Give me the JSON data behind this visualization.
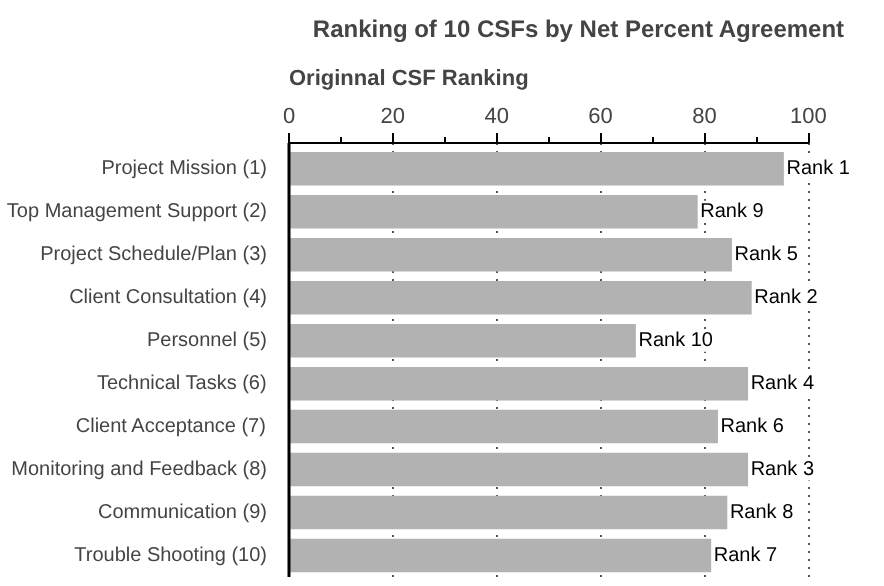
{
  "chart_data": {
    "type": "bar",
    "orientation": "horizontal",
    "title": "Ranking of 10 CSFs by Net Percent Agreement",
    "ylabel": "Originnal CSF Ranking",
    "categories": [
      "Project Mission (1)",
      "Top Management Support (2)",
      "Project Schedule/Plan (3)",
      "Client Consultation (4)",
      "Personnel (5)",
      "Technical Tasks (6)",
      "Client Acceptance (7)",
      "Monitoring and Feedback (8)",
      "Communication (9)",
      "Trouble Shooting (10)"
    ],
    "values": [
      95.3,
      78.7,
      85.3,
      89.1,
      66.8,
      88.4,
      82.6,
      88.4,
      84.4,
      81.3
    ],
    "value_labels": [
      "Rank 1",
      "Rank 9",
      "Rank  5",
      "Rank 2",
      "Rank 10",
      "Rank 4",
      "Rank 6",
      "Rank 3",
      "Rank 8",
      "Rank 7"
    ],
    "color": "#b2b2b2",
    "xlim": [
      0,
      100
    ],
    "xticks": [
      0,
      20,
      40,
      60,
      80,
      100
    ],
    "grid": "x"
  }
}
